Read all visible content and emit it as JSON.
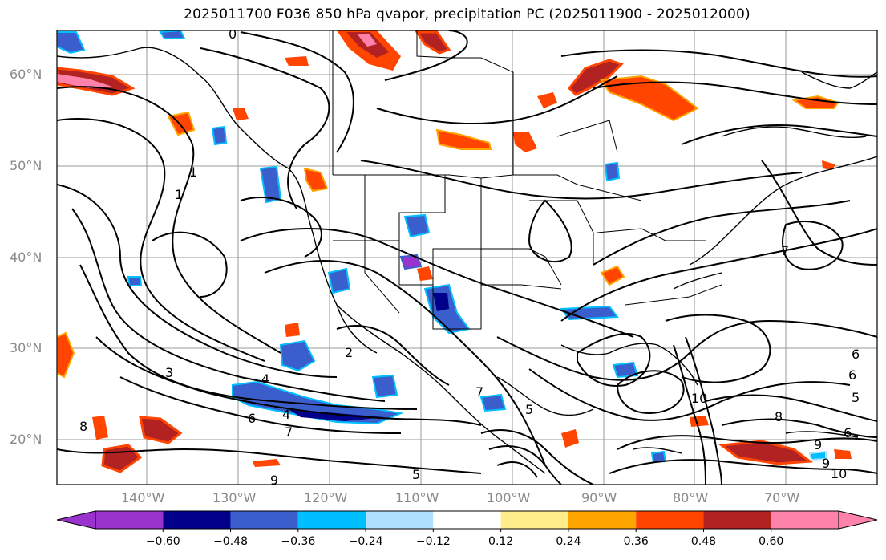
{
  "title": "2025011700 F036 850 hPa qvapor, precipitation PC (2025011900 - 2025012000)",
  "lat_labels": [
    "60°N",
    "50°N",
    "40°N",
    "30°N",
    "20°N"
  ],
  "lon_labels": [
    "140°W",
    "130°W",
    "120°W",
    "110°W",
    "100°W",
    "90°W",
    "80°W",
    "70°W"
  ],
  "colorbar": {
    "ticks": [
      "−0.60",
      "−0.48",
      "−0.36",
      "−0.24",
      "−0.12",
      "0.12",
      "0.24",
      "0.36",
      "0.48",
      "0.60"
    ],
    "colors": [
      "#9a32cd",
      "#00008b",
      "#3a5fcd",
      "#00bfff",
      "#b0e2ff",
      "#ffffff",
      "#ffec8b",
      "#ffa500",
      "#ff4500",
      "#b22222",
      "#ff82ab",
      "#ff82ab"
    ]
  },
  "contour_labels": [
    "0",
    "1",
    "1",
    "2",
    "3",
    "4",
    "4",
    "5",
    "5",
    "5",
    "6",
    "6",
    "6",
    "6",
    "7",
    "7",
    "7",
    "8",
    "8",
    "9",
    "9",
    "9",
    "10",
    "10"
  ],
  "map_layers": [
    "coastlines",
    "country-borders",
    "state-borders",
    "qvapor-contours",
    "precip-pc-fill"
  ]
}
